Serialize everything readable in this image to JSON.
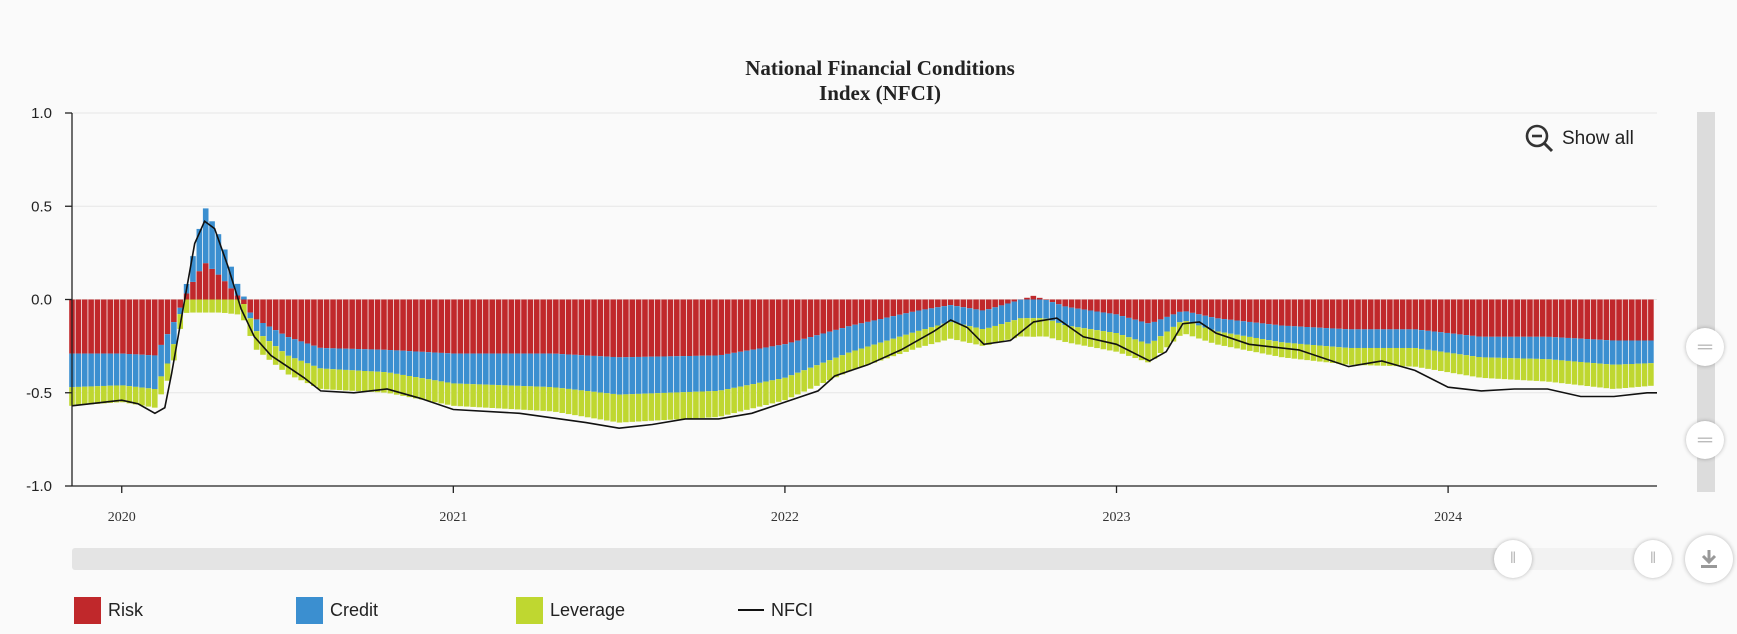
{
  "chart_data": {
    "type": "bar",
    "title_lines": [
      "National Financial Conditions",
      "Index (NFCI)"
    ],
    "y_ticks": [
      "1.0",
      "0.5",
      "0.0",
      "-0.5",
      "-1.0"
    ],
    "ylim": [
      -1.0,
      1.0
    ],
    "x_ticks": [
      "2020",
      "2021",
      "2022",
      "2023",
      "2024"
    ],
    "x_tick_values": [
      2020.0,
      2021.0,
      2022.0,
      2023.0,
      2024.0
    ],
    "xlim": [
      2019.85,
      2024.63
    ],
    "stacked": true,
    "grid": true,
    "legend_position": "bottom",
    "series": [
      {
        "name": "Risk",
        "color": "#c0282b",
        "kind": "bar",
        "points": [
          [
            2019.85,
            -0.29
          ],
          [
            2020.0,
            -0.29
          ],
          [
            2020.1,
            -0.3
          ],
          [
            2020.15,
            -0.15
          ],
          [
            2020.2,
            0.05
          ],
          [
            2020.25,
            0.2
          ],
          [
            2020.3,
            0.12
          ],
          [
            2020.35,
            0.02
          ],
          [
            2020.4,
            -0.1
          ],
          [
            2020.5,
            -0.2
          ],
          [
            2020.6,
            -0.26
          ],
          [
            2020.8,
            -0.27
          ],
          [
            2021.0,
            -0.29
          ],
          [
            2021.3,
            -0.29
          ],
          [
            2021.5,
            -0.31
          ],
          [
            2021.8,
            -0.3
          ],
          [
            2022.0,
            -0.24
          ],
          [
            2022.2,
            -0.14
          ],
          [
            2022.4,
            -0.06
          ],
          [
            2022.5,
            -0.03
          ],
          [
            2022.6,
            -0.06
          ],
          [
            2022.75,
            0.02
          ],
          [
            2022.85,
            -0.04
          ],
          [
            2023.0,
            -0.08
          ],
          [
            2023.1,
            -0.13
          ],
          [
            2023.2,
            -0.06
          ],
          [
            2023.3,
            -0.1
          ],
          [
            2023.5,
            -0.14
          ],
          [
            2023.7,
            -0.16
          ],
          [
            2023.9,
            -0.16
          ],
          [
            2024.1,
            -0.2
          ],
          [
            2024.3,
            -0.2
          ],
          [
            2024.5,
            -0.22
          ],
          [
            2024.63,
            -0.22
          ]
        ]
      },
      {
        "name": "Credit",
        "color": "#3b8fd0",
        "kind": "bar",
        "points": [
          [
            2019.85,
            -0.18
          ],
          [
            2020.0,
            -0.17
          ],
          [
            2020.1,
            -0.18
          ],
          [
            2020.15,
            -0.15
          ],
          [
            2020.2,
            0.07
          ],
          [
            2020.25,
            0.3
          ],
          [
            2020.3,
            0.2
          ],
          [
            2020.35,
            0.06
          ],
          [
            2020.4,
            -0.06
          ],
          [
            2020.5,
            -0.1
          ],
          [
            2020.6,
            -0.11
          ],
          [
            2020.8,
            -0.12
          ],
          [
            2021.0,
            -0.16
          ],
          [
            2021.3,
            -0.18
          ],
          [
            2021.5,
            -0.2
          ],
          [
            2021.8,
            -0.19
          ],
          [
            2022.0,
            -0.18
          ],
          [
            2022.2,
            -0.14
          ],
          [
            2022.4,
            -0.11
          ],
          [
            2022.5,
            -0.09
          ],
          [
            2022.6,
            -0.1
          ],
          [
            2022.75,
            -0.1
          ],
          [
            2022.85,
            -0.1
          ],
          [
            2023.0,
            -0.1
          ],
          [
            2023.1,
            -0.11
          ],
          [
            2023.2,
            -0.05
          ],
          [
            2023.3,
            -0.07
          ],
          [
            2023.5,
            -0.09
          ],
          [
            2023.7,
            -0.1
          ],
          [
            2023.9,
            -0.1
          ],
          [
            2024.1,
            -0.11
          ],
          [
            2024.3,
            -0.12
          ],
          [
            2024.5,
            -0.13
          ],
          [
            2024.63,
            -0.12
          ]
        ]
      },
      {
        "name": "Leverage",
        "color": "#bfd730",
        "kind": "bar",
        "points": [
          [
            2019.85,
            -0.1
          ],
          [
            2020.0,
            -0.09
          ],
          [
            2020.1,
            -0.1
          ],
          [
            2020.15,
            -0.09
          ],
          [
            2020.2,
            -0.07
          ],
          [
            2020.25,
            -0.07
          ],
          [
            2020.3,
            -0.07
          ],
          [
            2020.35,
            -0.08
          ],
          [
            2020.4,
            -0.1
          ],
          [
            2020.5,
            -0.1
          ],
          [
            2020.6,
            -0.11
          ],
          [
            2020.8,
            -0.11
          ],
          [
            2021.0,
            -0.12
          ],
          [
            2021.3,
            -0.13
          ],
          [
            2021.5,
            -0.15
          ],
          [
            2021.8,
            -0.14
          ],
          [
            2022.0,
            -0.12
          ],
          [
            2022.2,
            -0.1
          ],
          [
            2022.4,
            -0.09
          ],
          [
            2022.5,
            -0.09
          ],
          [
            2022.6,
            -0.09
          ],
          [
            2022.75,
            -0.1
          ],
          [
            2022.85,
            -0.09
          ],
          [
            2023.0,
            -0.1
          ],
          [
            2023.1,
            -0.1
          ],
          [
            2023.2,
            -0.07
          ],
          [
            2023.3,
            -0.07
          ],
          [
            2023.5,
            -0.08
          ],
          [
            2023.7,
            -0.09
          ],
          [
            2023.9,
            -0.1
          ],
          [
            2024.1,
            -0.11
          ],
          [
            2024.3,
            -0.12
          ],
          [
            2024.5,
            -0.13
          ],
          [
            2024.63,
            -0.12
          ]
        ]
      },
      {
        "name": "NFCI",
        "color": "#111111",
        "kind": "line",
        "points": [
          [
            2019.85,
            -0.57
          ],
          [
            2019.9,
            -0.56
          ],
          [
            2020.0,
            -0.54
          ],
          [
            2020.05,
            -0.56
          ],
          [
            2020.1,
            -0.61
          ],
          [
            2020.13,
            -0.58
          ],
          [
            2020.15,
            -0.4
          ],
          [
            2020.18,
            -0.1
          ],
          [
            2020.22,
            0.3
          ],
          [
            2020.25,
            0.42
          ],
          [
            2020.28,
            0.38
          ],
          [
            2020.32,
            0.18
          ],
          [
            2020.36,
            -0.05
          ],
          [
            2020.4,
            -0.2
          ],
          [
            2020.45,
            -0.3
          ],
          [
            2020.5,
            -0.36
          ],
          [
            2020.55,
            -0.42
          ],
          [
            2020.6,
            -0.49
          ],
          [
            2020.7,
            -0.5
          ],
          [
            2020.8,
            -0.48
          ],
          [
            2020.9,
            -0.53
          ],
          [
            2021.0,
            -0.59
          ],
          [
            2021.2,
            -0.61
          ],
          [
            2021.4,
            -0.66
          ],
          [
            2021.5,
            -0.69
          ],
          [
            2021.6,
            -0.67
          ],
          [
            2021.7,
            -0.64
          ],
          [
            2021.8,
            -0.64
          ],
          [
            2021.9,
            -0.61
          ],
          [
            2022.0,
            -0.55
          ],
          [
            2022.1,
            -0.49
          ],
          [
            2022.15,
            -0.41
          ],
          [
            2022.25,
            -0.35
          ],
          [
            2022.35,
            -0.27
          ],
          [
            2022.45,
            -0.17
          ],
          [
            2022.5,
            -0.11
          ],
          [
            2022.55,
            -0.15
          ],
          [
            2022.6,
            -0.24
          ],
          [
            2022.68,
            -0.22
          ],
          [
            2022.75,
            -0.12
          ],
          [
            2022.82,
            -0.1
          ],
          [
            2022.9,
            -0.2
          ],
          [
            2023.0,
            -0.24
          ],
          [
            2023.1,
            -0.33
          ],
          [
            2023.15,
            -0.28
          ],
          [
            2023.2,
            -0.13
          ],
          [
            2023.25,
            -0.12
          ],
          [
            2023.3,
            -0.18
          ],
          [
            2023.4,
            -0.24
          ],
          [
            2023.55,
            -0.27
          ],
          [
            2023.7,
            -0.36
          ],
          [
            2023.8,
            -0.33
          ],
          [
            2023.9,
            -0.38
          ],
          [
            2024.0,
            -0.47
          ],
          [
            2024.1,
            -0.49
          ],
          [
            2024.2,
            -0.48
          ],
          [
            2024.3,
            -0.48
          ],
          [
            2024.4,
            -0.52
          ],
          [
            2024.5,
            -0.52
          ],
          [
            2024.6,
            -0.5
          ],
          [
            2024.63,
            -0.5
          ]
        ]
      }
    ]
  },
  "toolbar": {
    "show_all_label": "Show all"
  },
  "legend": {
    "risk_label": "Risk",
    "credit_label": "Credit",
    "leverage_label": "Leverage",
    "nfci_label": "NFCI"
  },
  "icons": {
    "zoom": "zoom-out-icon",
    "download": "download-icon",
    "handle": "grip-icon"
  }
}
